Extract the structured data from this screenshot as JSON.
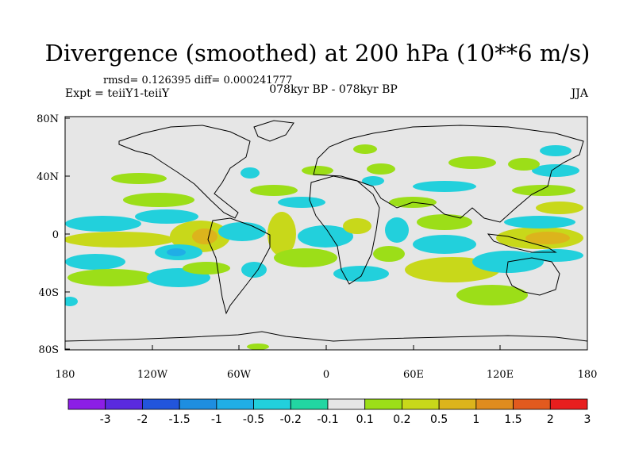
{
  "header": {
    "title": "Divergence (smoothed) at 200 hPa (10**6 m/s)",
    "stats": "rmsd= 0.126395 diff= 0.000241777",
    "expt": "Expt = teiiY1-teiiY",
    "period": "078kyr BP - 078kyr BP",
    "season": "JJA"
  },
  "axes": {
    "lat_ticks": [
      "80N",
      "40N",
      "0",
      "40S",
      "80S"
    ],
    "lon_ticks": [
      "180",
      "120W",
      "60W",
      "0",
      "60E",
      "120E",
      "180"
    ]
  },
  "colorbar": {
    "labels": [
      "-3",
      "-2",
      "-1.5",
      "-1",
      "-0.5",
      "-0.2",
      "-0.1",
      "0.1",
      "0.2",
      "0.5",
      "1",
      "1.5",
      "2",
      "3"
    ],
    "colors": [
      "#8c1ee6",
      "#5a2ade",
      "#2255dc",
      "#1e8ee0",
      "#20aee6",
      "#22d0dc",
      "#22d6a2",
      "#e6e6e6",
      "#9cde18",
      "#c8d81a",
      "#dcb41c",
      "#e08c1e",
      "#e25a1e",
      "#e81e1e"
    ]
  },
  "map_colors": {
    "background": "#e6e6e6",
    "neg_light": "#22d0dc",
    "neg_mid": "#20aee6",
    "neg_strong": "#1e8ee0",
    "pos_light": "#9cde18",
    "pos_mid": "#c8d81a",
    "pos_strong": "#dcb41c",
    "pos_vstrong": "#e08c1e"
  }
}
